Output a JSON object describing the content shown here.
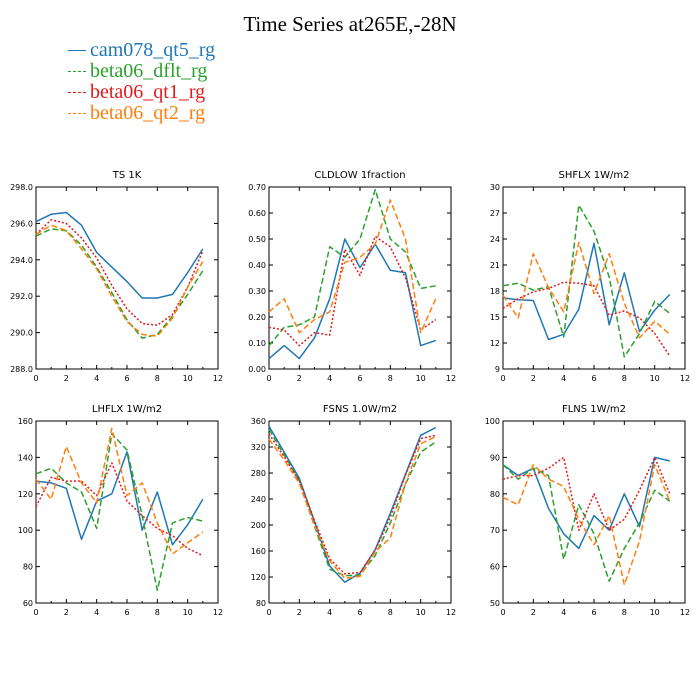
{
  "title": "Time Series at265E,-28N",
  "legend": [
    {
      "name": "cam078_qt5_rg",
      "color": "#1f77b4",
      "dash": "solid"
    },
    {
      "name": "beta06_dflt_rg",
      "color": "#2ca02c",
      "dash": "dashed"
    },
    {
      "name": "beta06_qt1_rg",
      "color": "#e31a1c",
      "dash": "dotted"
    },
    {
      "name": "beta06_qt2_rg",
      "color": "#ff7f0e",
      "dash": "dashed"
    }
  ],
  "chart_data": [
    {
      "type": "line",
      "title": "TS   1K",
      "x": [
        0,
        1,
        2,
        3,
        4,
        5,
        6,
        7,
        8,
        9,
        10,
        11
      ],
      "xlim": [
        0,
        12
      ],
      "xticks": [
        "0",
        "2",
        "4",
        "6",
        "8",
        "10",
        "12"
      ],
      "ylim": [
        288,
        298
      ],
      "yticks": [
        "288.0",
        "290.0",
        "292.0",
        "294.0",
        "296.0",
        "298.0"
      ],
      "series": [
        {
          "name": "cam078_qt5_rg",
          "values": [
            296.1,
            296.5,
            296.6,
            295.9,
            294.4,
            293.6,
            292.8,
            291.9,
            291.9,
            292.1,
            293.3,
            294.6
          ]
        },
        {
          "name": "beta06_dflt_rg",
          "values": [
            295.3,
            295.7,
            295.6,
            294.8,
            293.6,
            292.2,
            290.7,
            289.7,
            289.9,
            290.9,
            292.1,
            293.4
          ]
        },
        {
          "name": "beta06_qt1_rg",
          "values": [
            295.4,
            296.2,
            296.0,
            295.2,
            294.1,
            292.6,
            291.3,
            290.5,
            290.4,
            291.0,
            292.5,
            294.5
          ]
        },
        {
          "name": "beta06_qt2_rg",
          "values": [
            295.4,
            295.9,
            295.6,
            294.6,
            293.5,
            292.0,
            290.6,
            289.9,
            289.8,
            290.8,
            292.5,
            293.9
          ]
        }
      ]
    },
    {
      "type": "line",
      "title": "CLDLOW   1fraction",
      "x": [
        0,
        1,
        2,
        3,
        4,
        5,
        6,
        7,
        8,
        9,
        10,
        11
      ],
      "xlim": [
        0,
        12
      ],
      "xticks": [
        "0",
        "2",
        "4",
        "6",
        "8",
        "10",
        "12"
      ],
      "ylim": [
        0,
        0.7
      ],
      "yticks": [
        "0.00",
        "0.10",
        "0.20",
        "0.30",
        "0.40",
        "0.50",
        "0.60",
        "0.70"
      ],
      "series": [
        {
          "name": "cam078_qt5_rg",
          "values": [
            0.04,
            0.09,
            0.04,
            0.12,
            0.27,
            0.5,
            0.39,
            0.48,
            0.38,
            0.37,
            0.09,
            0.11
          ]
        },
        {
          "name": "beta06_dflt_rg",
          "values": [
            0.09,
            0.16,
            0.17,
            0.2,
            0.47,
            0.43,
            0.5,
            0.69,
            0.5,
            0.45,
            0.31,
            0.32
          ]
        },
        {
          "name": "beta06_qt1_rg",
          "values": [
            0.16,
            0.15,
            0.09,
            0.14,
            0.13,
            0.46,
            0.36,
            0.51,
            0.47,
            0.35,
            0.15,
            0.19
          ]
        },
        {
          "name": "beta06_qt2_rg",
          "values": [
            0.22,
            0.27,
            0.14,
            0.19,
            0.22,
            0.41,
            0.43,
            0.48,
            0.65,
            0.5,
            0.14,
            0.27
          ]
        }
      ]
    },
    {
      "type": "line",
      "title": "SHFLX   1W/m2",
      "x": [
        0,
        1,
        2,
        3,
        4,
        5,
        6,
        7,
        8,
        9,
        10,
        11
      ],
      "xlim": [
        0,
        12
      ],
      "xticks": [
        "0",
        "2",
        "4",
        "6",
        "8",
        "10",
        "12"
      ],
      "ylim": [
        9,
        30
      ],
      "yticks": [
        "9",
        "12",
        "15",
        "18",
        "21",
        "24",
        "27",
        "30"
      ],
      "series": [
        {
          "name": "cam078_qt5_rg",
          "values": [
            17.2,
            17.0,
            16.9,
            12.4,
            13.0,
            15.9,
            23.5,
            14.1,
            20.1,
            13.3,
            15.8,
            17.6
          ]
        },
        {
          "name": "beta06_dflt_rg",
          "values": [
            18.6,
            18.9,
            18.1,
            18.5,
            12.7,
            27.9,
            24.9,
            19.6,
            10.4,
            13.1,
            16.8,
            15.4
          ]
        },
        {
          "name": "beta06_qt1_rg",
          "values": [
            16.0,
            17.1,
            17.9,
            18.3,
            19.0,
            18.9,
            18.6,
            15.2,
            15.7,
            14.9,
            13.1,
            10.5
          ]
        },
        {
          "name": "beta06_qt2_rg",
          "values": [
            17.5,
            14.9,
            22.3,
            18.4,
            15.6,
            23.6,
            17.7,
            22.3,
            16.6,
            12.6,
            14.5,
            13.0
          ]
        }
      ]
    },
    {
      "type": "line",
      "title": "LHFLX   1W/m2",
      "x": [
        0,
        1,
        2,
        3,
        4,
        5,
        6,
        7,
        8,
        9,
        10,
        11
      ],
      "xlim": [
        0,
        12
      ],
      "xticks": [
        "0",
        "2",
        "4",
        "6",
        "8",
        "10",
        "12"
      ],
      "ylim": [
        60,
        160
      ],
      "yticks": [
        "60",
        "80",
        "100",
        "120",
        "140",
        "160"
      ],
      "series": [
        {
          "name": "cam078_qt5_rg",
          "values": [
            127,
            126,
            123,
            95,
            116,
            120,
            143,
            100,
            121,
            92,
            103,
            117
          ]
        },
        {
          "name": "beta06_dflt_rg",
          "values": [
            131,
            134,
            126,
            121,
            101,
            153,
            144,
            108,
            67,
            104,
            107,
            105
          ]
        },
        {
          "name": "beta06_qt1_rg",
          "values": [
            113,
            129,
            127,
            127,
            119,
            137,
            116,
            108,
            101,
            97,
            90,
            86
          ]
        },
        {
          "name": "beta06_qt2_rg",
          "values": [
            128,
            117,
            146,
            126,
            115,
            156,
            119,
            126,
            104,
            87,
            93,
            99
          ]
        }
      ]
    },
    {
      "type": "line",
      "title": "FSNS   1.0W/m2",
      "x": [
        0,
        1,
        2,
        3,
        4,
        5,
        6,
        7,
        8,
        9,
        10,
        11
      ],
      "xlim": [
        0,
        12
      ],
      "xticks": [
        "0",
        "2",
        "4",
        "6",
        "8",
        "10",
        "12"
      ],
      "ylim": [
        80,
        360
      ],
      "yticks": [
        "80",
        "120",
        "160",
        "200",
        "240",
        "280",
        "320",
        "360"
      ],
      "series": [
        {
          "name": "cam078_qt5_rg",
          "values": [
            352,
            312,
            272,
            205,
            137,
            112,
            126,
            162,
            218,
            278,
            338,
            350
          ]
        },
        {
          "name": "beta06_dflt_rg",
          "values": [
            347,
            308,
            268,
            198,
            132,
            122,
            123,
            153,
            203,
            263,
            312,
            328
          ]
        },
        {
          "name": "beta06_qt1_rg",
          "values": [
            340,
            305,
            268,
            207,
            148,
            125,
            127,
            161,
            212,
            277,
            333,
            338
          ]
        },
        {
          "name": "beta06_qt2_rg",
          "values": [
            332,
            300,
            264,
            199,
            145,
            118,
            121,
            159,
            180,
            264,
            325,
            336
          ]
        }
      ]
    },
    {
      "type": "line",
      "title": "FLNS   1W/m2",
      "x": [
        0,
        1,
        2,
        3,
        4,
        5,
        6,
        7,
        8,
        9,
        10,
        11
      ],
      "xlim": [
        0,
        12
      ],
      "xticks": [
        "0",
        "2",
        "4",
        "6",
        "8",
        "10",
        "12"
      ],
      "ylim": [
        50,
        100
      ],
      "yticks": [
        "50",
        "60",
        "70",
        "80",
        "90",
        "100"
      ],
      "series": [
        {
          "name": "cam078_qt5_rg",
          "values": [
            88,
            85,
            87,
            76,
            69,
            65,
            74,
            70,
            80,
            71,
            90,
            89
          ]
        },
        {
          "name": "beta06_dflt_rg",
          "values": [
            88,
            84,
            87,
            85,
            62,
            77,
            69,
            56,
            65,
            72,
            81,
            78
          ]
        },
        {
          "name": "beta06_qt1_rg",
          "values": [
            84,
            85,
            85,
            87,
            90,
            70,
            80,
            70,
            73,
            81,
            90,
            80
          ]
        },
        {
          "name": "beta06_qt2_rg",
          "values": [
            79,
            77,
            88,
            84,
            82,
            73,
            66,
            74,
            55,
            67,
            88,
            78
          ]
        }
      ]
    }
  ]
}
